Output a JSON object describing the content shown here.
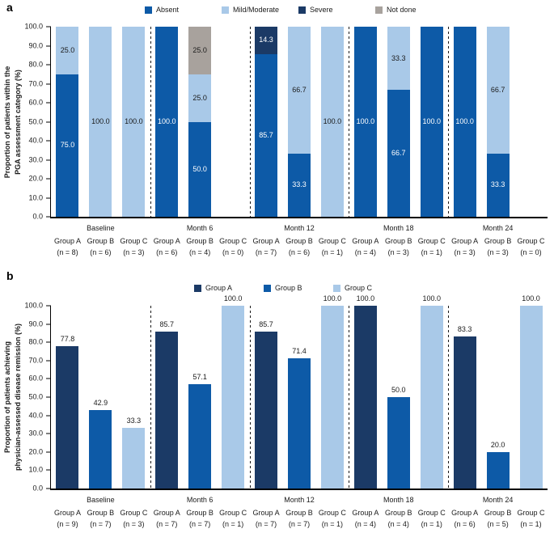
{
  "figure": {
    "panels": [
      {
        "letter": "a"
      },
      {
        "letter": "b"
      }
    ]
  },
  "chart_data": [
    {
      "type": "bar",
      "stacked": true,
      "panel": "a",
      "ylabel": "Proportion of patients within the\nPGA assessment category (%)",
      "xlabel": "",
      "ylim": [
        0,
        100
      ],
      "ytick_step": 10,
      "grid": false,
      "legend_position": "top",
      "legend": [
        {
          "label": "Absent",
          "color": "#0d5aa7"
        },
        {
          "label": "Mild/Moderate",
          "color": "#a9c9e8"
        },
        {
          "label": "Severe",
          "color": "#1b3a66"
        },
        {
          "label": "Not done",
          "color": "#a8a29d"
        }
      ],
      "colors": {
        "Absent": "#0d5aa7",
        "Mild/Moderate": "#a9c9e8",
        "Severe": "#1b3a66",
        "Not done": "#a8a29d"
      },
      "label_colors": {
        "Absent": "#ffffff",
        "Mild/Moderate": "#1a1a1a",
        "Severe": "#ffffff",
        "Not done": "#1a1a1a"
      },
      "time_groups": [
        {
          "label": "Baseline",
          "bars": [
            {
              "group": "Group A",
              "n": "(n = 8)",
              "segments": [
                {
                  "cat": "Absent",
                  "value": 75.0
                },
                {
                  "cat": "Mild/Moderate",
                  "value": 25.0
                }
              ]
            },
            {
              "group": "Group B",
              "n": "(n = 6)",
              "segments": [
                {
                  "cat": "Mild/Moderate",
                  "value": 100.0
                }
              ]
            },
            {
              "group": "Group C",
              "n": "(n = 3)",
              "segments": [
                {
                  "cat": "Mild/Moderate",
                  "value": 100.0
                }
              ]
            }
          ]
        },
        {
          "label": "Month 6",
          "bars": [
            {
              "group": "Group A",
              "n": "(n = 6)",
              "segments": [
                {
                  "cat": "Absent",
                  "value": 100.0
                }
              ]
            },
            {
              "group": "Group B",
              "n": "(n = 4)",
              "segments": [
                {
                  "cat": "Absent",
                  "value": 50.0
                },
                {
                  "cat": "Mild/Moderate",
                  "value": 25.0
                },
                {
                  "cat": "Not done",
                  "value": 25.0
                }
              ]
            },
            {
              "group": "Group C",
              "n": "(n = 0)",
              "segments": []
            }
          ]
        },
        {
          "label": "Month 12",
          "bars": [
            {
              "group": "Group A",
              "n": "(n = 7)",
              "segments": [
                {
                  "cat": "Absent",
                  "value": 85.7
                },
                {
                  "cat": "Severe",
                  "value": 14.3
                }
              ]
            },
            {
              "group": "Group B",
              "n": "(n = 6)",
              "segments": [
                {
                  "cat": "Absent",
                  "value": 33.3
                },
                {
                  "cat": "Mild/Moderate",
                  "value": 66.7
                }
              ]
            },
            {
              "group": "Group C",
              "n": "(n = 1)",
              "segments": [
                {
                  "cat": "Mild/Moderate",
                  "value": 100.0
                }
              ]
            }
          ]
        },
        {
          "label": "Month 18",
          "bars": [
            {
              "group": "Group A",
              "n": "(n = 4)",
              "segments": [
                {
                  "cat": "Absent",
                  "value": 100.0
                }
              ]
            },
            {
              "group": "Group B",
              "n": "(n = 3)",
              "segments": [
                {
                  "cat": "Absent",
                  "value": 66.7
                },
                {
                  "cat": "Mild/Moderate",
                  "value": 33.3
                }
              ]
            },
            {
              "group": "Group C",
              "n": "(n = 1)",
              "segments": [
                {
                  "cat": "Absent",
                  "value": 100.0
                }
              ]
            }
          ]
        },
        {
          "label": "Month 24",
          "bars": [
            {
              "group": "Group A",
              "n": "(n = 3)",
              "segments": [
                {
                  "cat": "Absent",
                  "value": 100.0
                }
              ]
            },
            {
              "group": "Group B",
              "n": "(n = 3)",
              "segments": [
                {
                  "cat": "Absent",
                  "value": 33.3
                },
                {
                  "cat": "Mild/Moderate",
                  "value": 66.7
                }
              ]
            },
            {
              "group": "Group C",
              "n": "(n = 0)",
              "segments": []
            }
          ]
        }
      ]
    },
    {
      "type": "bar",
      "stacked": false,
      "panel": "b",
      "ylabel": "Proportion of patients achieving\nphysician-assessed disease remission (%)",
      "xlabel": "",
      "ylim": [
        0,
        100
      ],
      "ytick_step": 10,
      "grid": false,
      "legend_position": "top",
      "legend": [
        {
          "label": "Group A",
          "color": "#1b3a66"
        },
        {
          "label": "Group B",
          "color": "#0d5aa7"
        },
        {
          "label": "Group C",
          "color": "#a9c9e8"
        }
      ],
      "colors": {
        "Group A": "#1b3a66",
        "Group B": "#0d5aa7",
        "Group C": "#a9c9e8"
      },
      "time_groups": [
        {
          "label": "Baseline",
          "bars": [
            {
              "group": "Group A",
              "n": "(n = 9)",
              "value": 77.8
            },
            {
              "group": "Group B",
              "n": "(n = 7)",
              "value": 42.9
            },
            {
              "group": "Group C",
              "n": "(n = 3)",
              "value": 33.3
            }
          ]
        },
        {
          "label": "Month 6",
          "bars": [
            {
              "group": "Group A",
              "n": "(n = 7)",
              "value": 85.7
            },
            {
              "group": "Group B",
              "n": "(n = 7)",
              "value": 57.1
            },
            {
              "group": "Group C",
              "n": "(n = 1)",
              "value": 100.0
            }
          ]
        },
        {
          "label": "Month 12",
          "bars": [
            {
              "group": "Group A",
              "n": "(n = 7)",
              "value": 85.7
            },
            {
              "group": "Group B",
              "n": "(n = 7)",
              "value": 71.4
            },
            {
              "group": "Group C",
              "n": "(n = 1)",
              "value": 100.0
            }
          ]
        },
        {
          "label": "Month 18",
          "bars": [
            {
              "group": "Group A",
              "n": "(n = 4)",
              "value": 100.0
            },
            {
              "group": "Group B",
              "n": "(n = 4)",
              "value": 50.0
            },
            {
              "group": "Group C",
              "n": "(n = 1)",
              "value": 100.0
            }
          ]
        },
        {
          "label": "Month 24",
          "bars": [
            {
              "group": "Group A",
              "n": "(n = 6)",
              "value": 83.3
            },
            {
              "group": "Group B",
              "n": "(n = 5)",
              "value": 20.0
            },
            {
              "group": "Group C",
              "n": "(n = 1)",
              "value": 100.0
            }
          ]
        }
      ]
    }
  ]
}
